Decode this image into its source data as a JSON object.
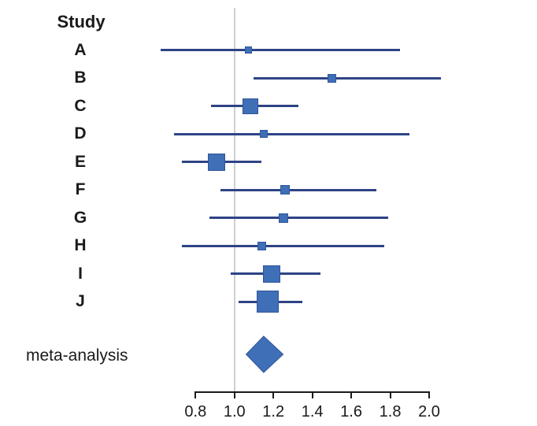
{
  "figure": {
    "background": "#ffffff"
  },
  "chart_data": {
    "type": "scatter",
    "variant": "forest-plot",
    "column_header": "Study",
    "x_axis": {
      "range": [
        0.8,
        2.0
      ],
      "tick_values": [
        0.8,
        1.0,
        1.2,
        1.4,
        1.6,
        1.8,
        2.0
      ],
      "tick_labels": [
        "0.8",
        "1.0",
        "1.2",
        "1.4",
        "1.6",
        "1.8",
        "2.0"
      ],
      "reference_line_value": 1.0,
      "grid": false
    },
    "studies": [
      {
        "label": "A",
        "estimate": 1.07,
        "ci_low": 0.62,
        "ci_high": 1.85,
        "marker_size_px": 9
      },
      {
        "label": "B",
        "estimate": 1.5,
        "ci_low": 1.1,
        "ci_high": 2.06,
        "marker_size_px": 11
      },
      {
        "label": "C",
        "estimate": 1.08,
        "ci_low": 0.88,
        "ci_high": 1.33,
        "marker_size_px": 20
      },
      {
        "label": "D",
        "estimate": 1.15,
        "ci_low": 0.69,
        "ci_high": 1.9,
        "marker_size_px": 10
      },
      {
        "label": "E",
        "estimate": 0.91,
        "ci_low": 0.73,
        "ci_high": 1.14,
        "marker_size_px": 22
      },
      {
        "label": "F",
        "estimate": 1.26,
        "ci_low": 0.93,
        "ci_high": 1.73,
        "marker_size_px": 12
      },
      {
        "label": "G",
        "estimate": 1.25,
        "ci_low": 0.87,
        "ci_high": 1.79,
        "marker_size_px": 12
      },
      {
        "label": "H",
        "estimate": 1.14,
        "ci_low": 0.73,
        "ci_high": 1.77,
        "marker_size_px": 11
      },
      {
        "label": "I",
        "estimate": 1.19,
        "ci_low": 0.98,
        "ci_high": 1.44,
        "marker_size_px": 22
      },
      {
        "label": "J",
        "estimate": 1.17,
        "ci_low": 1.02,
        "ci_high": 1.35,
        "marker_size_px": 28
      }
    ],
    "meta": {
      "label": "meta-analysis",
      "estimate": 1.15,
      "ci_low": 1.06,
      "ci_high": 1.25
    }
  },
  "colors": {
    "marker_fill": "#3e6fb7",
    "marker_border": "#32549b",
    "ci_line": "#2e4386",
    "reference_line": "#cfcfcf",
    "axis_line": "#1a1a1a",
    "text": "#1a1a1a"
  }
}
